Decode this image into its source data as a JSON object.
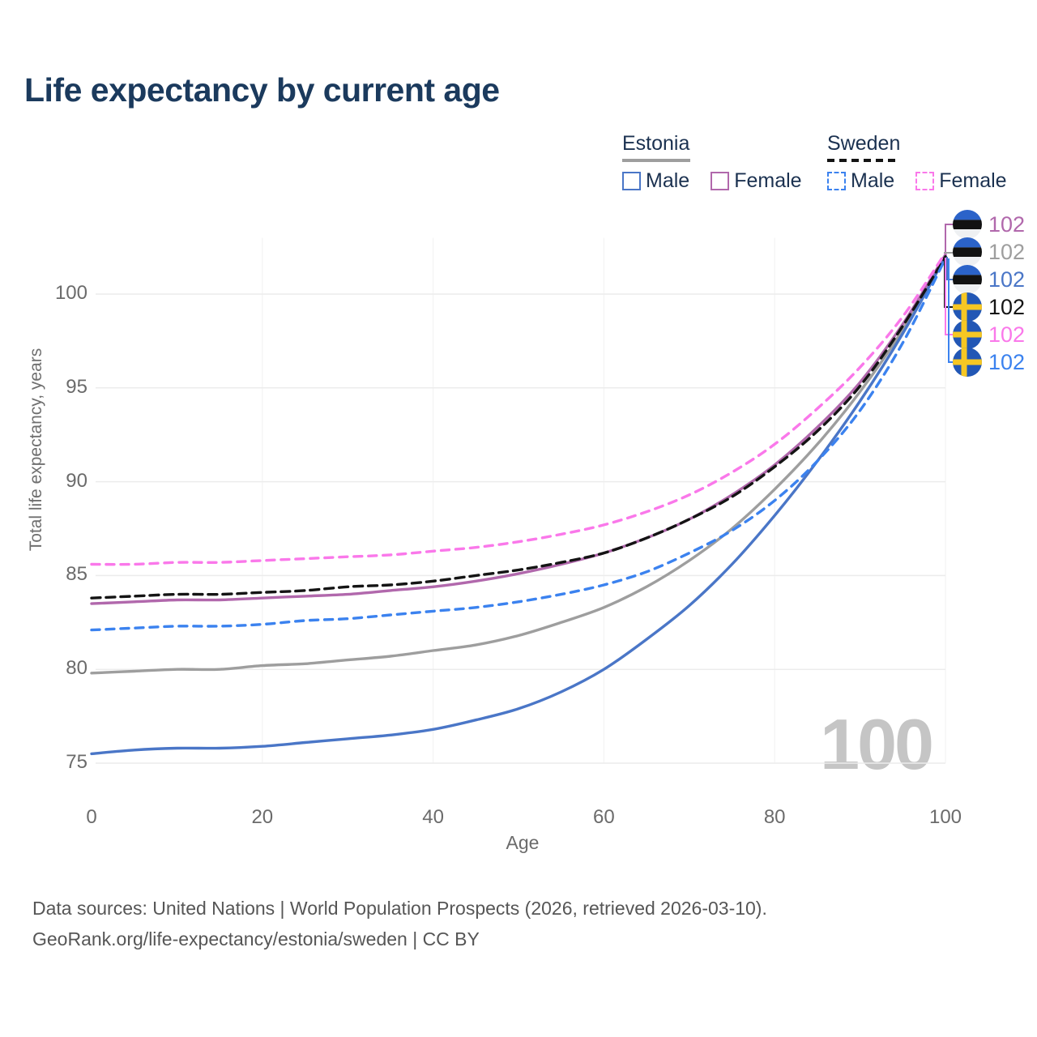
{
  "title": "Life expectancy by current age",
  "legend": {
    "groups": [
      {
        "label": "Estonia",
        "line_style": "solid",
        "line_color": "#9e9e9e",
        "items": [
          {
            "label": "Male",
            "color": "#4a76c7",
            "dash": false
          },
          {
            "label": "Female",
            "color": "#b168ac",
            "dash": false
          }
        ]
      },
      {
        "label": "Sweden",
        "line_style": "dashed",
        "line_color": "#141414",
        "items": [
          {
            "label": "Male",
            "color": "#3b82ef",
            "dash": true
          },
          {
            "label": "Female",
            "color": "#fa78ea",
            "dash": true
          }
        ]
      }
    ]
  },
  "y_axis": {
    "label": "Total life expectancy, years",
    "ticks": [
      75,
      80,
      85,
      90,
      95,
      100
    ]
  },
  "x_axis": {
    "label": "Age",
    "ticks": [
      0,
      20,
      40,
      60,
      80,
      100
    ]
  },
  "watermark": "100",
  "end_labels": [
    {
      "flag": "estonia",
      "value": "102",
      "color": "#b168ac",
      "series": "Estonia Female"
    },
    {
      "flag": "estonia",
      "value": "102",
      "color": "#9e9e9e",
      "series": "Estonia"
    },
    {
      "flag": "estonia",
      "value": "102",
      "color": "#4a76c7",
      "series": "Estonia Male"
    },
    {
      "flag": "sweden",
      "value": "102",
      "color": "#141414",
      "series": "Sweden"
    },
    {
      "flag": "sweden",
      "value": "102",
      "color": "#fa78ea",
      "series": "Sweden Female"
    },
    {
      "flag": "sweden",
      "value": "102",
      "color": "#3b82ef",
      "series": "Sweden Male"
    }
  ],
  "footer": {
    "line1": "Data sources: United Nations | World Population Prospects (2026, retrieved 2026-03-10).",
    "line2": "GeoRank.org/life-expectancy/estonia/sweden | CC BY"
  },
  "chart_data": {
    "type": "line",
    "title": "Life expectancy by current age",
    "xlabel": "Age",
    "ylabel": "Total life expectancy, years",
    "xlim": [
      0,
      100
    ],
    "ylim": [
      74,
      103.5
    ],
    "grid": true,
    "legend_position": "top-right",
    "x": [
      0,
      5,
      10,
      15,
      20,
      25,
      30,
      35,
      40,
      45,
      50,
      55,
      60,
      65,
      70,
      75,
      80,
      85,
      90,
      95,
      100
    ],
    "series": [
      {
        "name": "Estonia",
        "color": "#9e9e9e",
        "dash": false,
        "values": [
          79.8,
          79.9,
          80.0,
          80.0,
          80.2,
          80.3,
          80.5,
          80.7,
          81.0,
          81.3,
          81.8,
          82.5,
          83.3,
          84.4,
          85.8,
          87.5,
          89.6,
          92.0,
          94.8,
          98.1,
          102.0
        ]
      },
      {
        "name": "Estonia Female",
        "color": "#b168ac",
        "dash": false,
        "values": [
          83.5,
          83.6,
          83.7,
          83.7,
          83.8,
          83.9,
          84.0,
          84.2,
          84.4,
          84.7,
          85.1,
          85.6,
          86.2,
          87.0,
          88.0,
          89.3,
          90.9,
          92.9,
          95.3,
          98.4,
          102.1
        ]
      },
      {
        "name": "Estonia Male",
        "color": "#4a76c7",
        "dash": false,
        "values": [
          75.5,
          75.7,
          75.8,
          75.8,
          75.9,
          76.1,
          76.3,
          76.5,
          76.8,
          77.3,
          77.9,
          78.8,
          80.0,
          81.6,
          83.4,
          85.6,
          88.2,
          91.1,
          94.3,
          97.9,
          102.0
        ]
      },
      {
        "name": "Sweden",
        "color": "#141414",
        "dash": true,
        "values": [
          83.8,
          83.9,
          84.0,
          84.0,
          84.1,
          84.2,
          84.4,
          84.5,
          84.7,
          85.0,
          85.3,
          85.7,
          86.2,
          87.0,
          88.0,
          89.2,
          90.8,
          92.7,
          95.1,
          98.3,
          102.0
        ]
      },
      {
        "name": "Sweden Male",
        "color": "#3b82ef",
        "dash": true,
        "values": [
          82.1,
          82.2,
          82.3,
          82.3,
          82.4,
          82.6,
          82.7,
          82.9,
          83.1,
          83.3,
          83.6,
          84.0,
          84.5,
          85.2,
          86.2,
          87.4,
          89.0,
          91.1,
          93.8,
          97.4,
          101.9
        ]
      },
      {
        "name": "Sweden Female",
        "color": "#fa78ea",
        "dash": true,
        "values": [
          85.6,
          85.6,
          85.7,
          85.7,
          85.8,
          85.9,
          86.0,
          86.1,
          86.3,
          86.5,
          86.8,
          87.2,
          87.7,
          88.4,
          89.3,
          90.5,
          92.0,
          93.9,
          96.1,
          98.8,
          102.2
        ]
      }
    ]
  }
}
